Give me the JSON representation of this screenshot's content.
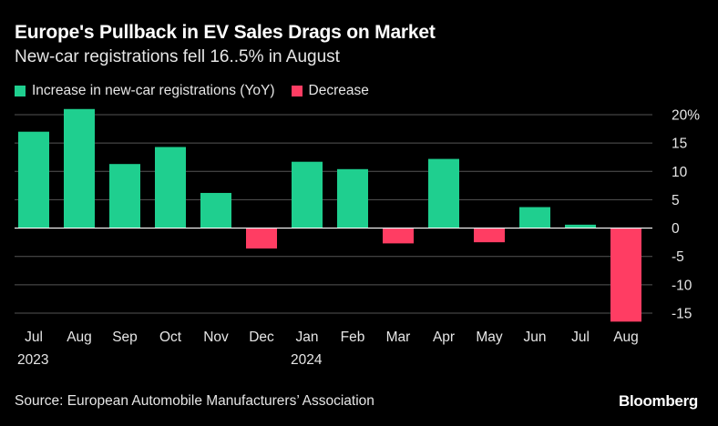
{
  "title": "Europe's Pullback in EV Sales Drags on Market",
  "subtitle": "New-car registrations fell 16..5% in August",
  "legend": {
    "increase_label": "Increase in new-car registrations (YoY)",
    "decrease_label": "Decrease"
  },
  "colors": {
    "increase": "#1fcf8f",
    "decrease": "#ff3d63",
    "background": "#000000",
    "gridline": "#555555",
    "zeroline": "#ffffff"
  },
  "source": "Source: European Automobile Manufacturers’ Association",
  "brand": "Bloomberg",
  "chart_data": {
    "type": "bar",
    "title": "Europe's Pullback in EV Sales Drags on Market",
    "xlabel": "",
    "ylabel": "",
    "ylim": [
      -15,
      20
    ],
    "yticks": [
      20,
      15,
      10,
      5,
      0,
      -5,
      -10,
      -15
    ],
    "ytick_labels": [
      "20%",
      "15",
      "10",
      "5",
      "0",
      "-5",
      "-10",
      "-15"
    ],
    "categories": [
      "Jul",
      "Aug",
      "Sep",
      "Oct",
      "Nov",
      "Dec",
      "Jan",
      "Feb",
      "Mar",
      "Apr",
      "May",
      "Jun",
      "Jul",
      "Aug"
    ],
    "year_labels": [
      "2023",
      "",
      "",
      "",
      "",
      "",
      "2024",
      "",
      "",
      "",
      "",
      "",
      "",
      ""
    ],
    "values": [
      17.0,
      21.0,
      11.3,
      14.3,
      6.2,
      -3.6,
      11.7,
      10.4,
      -2.7,
      12.2,
      -2.5,
      3.7,
      0.6,
      -16.5
    ],
    "grid": true,
    "legend_position": "top-left"
  }
}
